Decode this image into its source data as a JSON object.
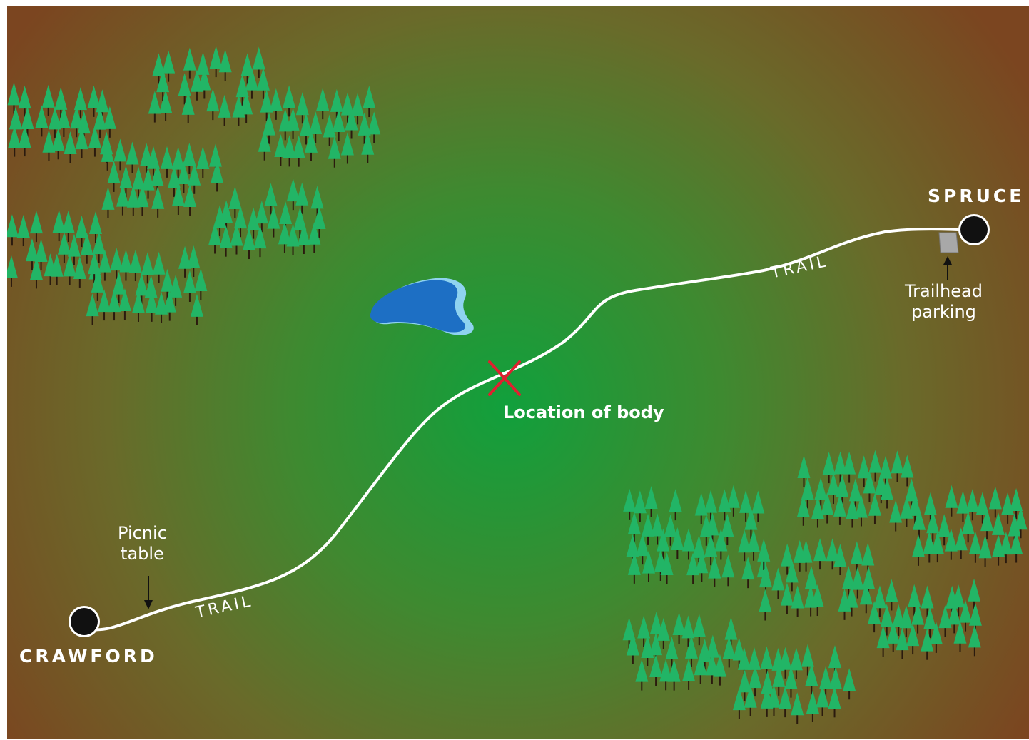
{
  "map": {
    "places": {
      "west_town": "CRAWFORD",
      "east_town": "SPRUCE"
    },
    "trail_labels": [
      "TRAIL",
      "TRAIL"
    ],
    "annotations": {
      "picnic_table": [
        "Picnic",
        "table"
      ],
      "trailhead_parking": [
        "Trailhead",
        "parking"
      ],
      "body_location": "Location of body"
    },
    "colors": {
      "center_green": "#11a03c",
      "mid_olive": "#5a7a2c",
      "edge_brown": "#7b4520",
      "trail": "#ffffff",
      "lake": "#1d6fc4",
      "lake_shore": "#8fd3f0",
      "marker_x": "#e02030",
      "town_dot": "#111111",
      "tree_canopy": "#22b566",
      "tree_trunk": "#2a1a0e",
      "parking_lot": "#a8a8a8"
    },
    "icons": {
      "town": "circle",
      "body_marker": "red-x",
      "tree": "pine-tree",
      "parking": "parking-lot"
    }
  }
}
